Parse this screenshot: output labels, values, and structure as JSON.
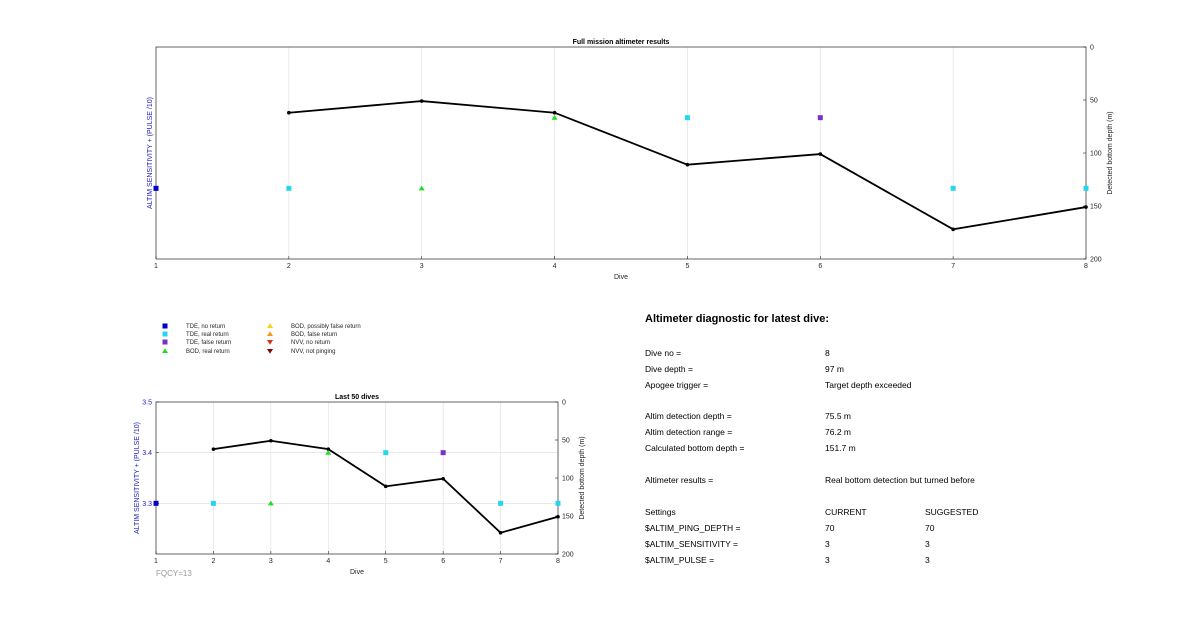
{
  "chart_data": [
    {
      "type": "scatter+line",
      "title": "Full mission altimeter results",
      "xlabel": "Dive",
      "ylabel_left": "ALTIM SENSITIVITY + (PULSE /10)",
      "ylabel_right": "Detected bottom depth (m)",
      "xlim": [
        1,
        8
      ],
      "xticks": [
        "1",
        "2",
        "3",
        "4",
        "5",
        "6",
        "7",
        "8"
      ],
      "yright_lim": [
        0,
        200
      ],
      "yright_ticks": [
        "0",
        "50",
        "100",
        "150",
        "200"
      ],
      "yleft_lim": [
        3.2,
        3.5
      ],
      "yleft_ticks": [],
      "grid": "vertical",
      "depth_line": {
        "x": [
          2,
          3,
          4,
          5,
          6,
          7,
          8
        ],
        "y": [
          62,
          51,
          62,
          111,
          101,
          172,
          151
        ]
      },
      "markers": [
        {
          "x": 1,
          "y": 3.3,
          "type": "tde_no_return"
        },
        {
          "x": 2,
          "y": 3.3,
          "type": "tde_real_return"
        },
        {
          "x": 3,
          "y": 3.3,
          "type": "bod_real_return"
        },
        {
          "x": 4,
          "y": 3.4,
          "type": "bod_real_return"
        },
        {
          "x": 5,
          "y": 3.4,
          "type": "tde_real_return"
        },
        {
          "x": 6,
          "y": 3.4,
          "type": "tde_false_return"
        },
        {
          "x": 7,
          "y": 3.3,
          "type": "tde_real_return"
        },
        {
          "x": 8,
          "y": 3.3,
          "type": "tde_real_return"
        }
      ]
    },
    {
      "type": "scatter+line",
      "title": "Last 50 dives",
      "xlabel": "Dive",
      "ylabel_left": "ALTIM SENSITIVITY + (PULSE /10)",
      "ylabel_right": "Detected bottom depth (m)",
      "xlim": [
        1,
        8
      ],
      "xticks": [
        "1",
        "2",
        "3",
        "4",
        "5",
        "6",
        "7",
        "8"
      ],
      "yright_lim": [
        0,
        200
      ],
      "yright_ticks": [
        "0",
        "50",
        "100",
        "150",
        "200"
      ],
      "yleft_lim": [
        3.2,
        3.5
      ],
      "yleft_ticks": [
        "3.3",
        "3.4",
        "3.5"
      ],
      "grid": "both",
      "depth_line": {
        "x": [
          2,
          3,
          4,
          5,
          6,
          7,
          8
        ],
        "y": [
          62,
          51,
          62,
          111,
          101,
          172,
          151
        ]
      },
      "markers": [
        {
          "x": 1,
          "y": 3.3,
          "type": "tde_no_return"
        },
        {
          "x": 2,
          "y": 3.3,
          "type": "tde_real_return"
        },
        {
          "x": 3,
          "y": 3.3,
          "type": "bod_real_return"
        },
        {
          "x": 4,
          "y": 3.4,
          "type": "bod_real_return"
        },
        {
          "x": 5,
          "y": 3.4,
          "type": "tde_real_return"
        },
        {
          "x": 6,
          "y": 3.4,
          "type": "tde_false_return"
        },
        {
          "x": 7,
          "y": 3.3,
          "type": "tde_real_return"
        },
        {
          "x": 8,
          "y": 3.3,
          "type": "tde_real_return"
        }
      ],
      "footnote": "FQCY=13"
    }
  ],
  "legend": [
    {
      "key": "tde_no_return",
      "label": "TDE, no return",
      "shape": "square",
      "color": "#0000c8"
    },
    {
      "key": "tde_real_return",
      "label": "TDE, real return",
      "shape": "square",
      "color": "#22d8ee"
    },
    {
      "key": "tde_false_return",
      "label": "TDE, false return",
      "shape": "square",
      "color": "#7b2fc9"
    },
    {
      "key": "bod_real_return",
      "label": "BOD, real return",
      "shape": "triangle-up",
      "color": "#22dd22"
    },
    {
      "key": "bod_possibly_false",
      "label": "BOD, possibly false return",
      "shape": "triangle-up",
      "color": "#f2d21a"
    },
    {
      "key": "bod_false_return",
      "label": "BOD, false return",
      "shape": "triangle-up",
      "color": "#f29a1a"
    },
    {
      "key": "nvv_no_return",
      "label": "NVV, no return",
      "shape": "triangle-down",
      "color": "#e03010"
    },
    {
      "key": "nvv_not_pinging",
      "label": "NVV, not pinging",
      "shape": "triangle-down",
      "color": "#7a0a0a"
    }
  ],
  "diagnostic": {
    "title": "Altimeter diagnostic for latest dive:",
    "rows": [
      {
        "label": "Dive no =",
        "value": "8"
      },
      {
        "label": "Dive depth =",
        "value": "97 m"
      },
      {
        "label": "Apogee trigger =",
        "value": "Target depth exceeded"
      },
      {
        "label": "Altim detection depth =",
        "value": "75.5 m"
      },
      {
        "label": "Altim detection range =",
        "value": "76.2 m"
      },
      {
        "label": "Calculated bottom depth =",
        "value": "151.7 m"
      },
      {
        "label": "Altimeter results =",
        "value": "Real bottom detection but turned before"
      }
    ],
    "settings_header": {
      "label": "Settings",
      "current": "CURRENT",
      "suggested": "SUGGESTED"
    },
    "settings": [
      {
        "label": "$ALTIM_PING_DEPTH =",
        "current": "70",
        "suggested": "70"
      },
      {
        "label": "$ALTIM_SENSITIVITY =",
        "current": "3",
        "suggested": "3"
      },
      {
        "label": "$ALTIM_PULSE =",
        "current": "3",
        "suggested": "3"
      }
    ]
  }
}
